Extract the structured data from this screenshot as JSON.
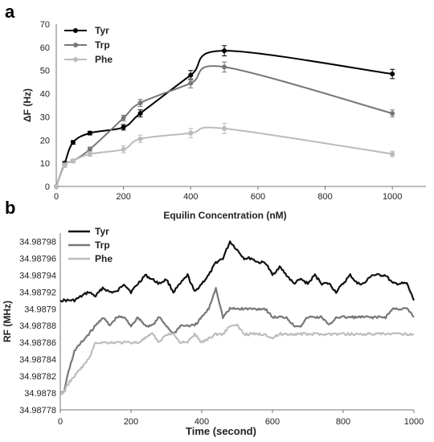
{
  "panels": {
    "a": "a",
    "b": "b"
  },
  "chart_data": [
    {
      "type": "line",
      "panel": "a",
      "xlabel": "Equilin Concentration (nM)",
      "ylabel": "ΔF (Hz)",
      "xlim": [
        0,
        1100
      ],
      "ylim": [
        0,
        70
      ],
      "xticks": [
        0,
        200,
        400,
        600,
        800,
        1000
      ],
      "yticks": [
        0,
        10,
        20,
        30,
        40,
        50,
        60,
        70
      ],
      "grid": false,
      "legend_position": "top-left",
      "x": [
        0,
        25,
        50,
        100,
        200,
        250,
        400,
        500,
        1000
      ],
      "series": [
        {
          "name": "Tyr",
          "color": "#000000",
          "values": [
            0,
            10,
            19,
            23,
            25.5,
            31.5,
            48,
            58.5,
            48.5
          ],
          "errors": [
            0,
            0.8,
            0.8,
            0.8,
            1.2,
            1.5,
            2.0,
            2.2,
            2.0
          ]
        },
        {
          "name": "Trp",
          "color": "#777777",
          "values": [
            0,
            9.5,
            11,
            16,
            29.5,
            36,
            44.5,
            51.5,
            31.5
          ],
          "errors": [
            0,
            0.8,
            0.8,
            1.0,
            1.2,
            1.5,
            2.0,
            2.2,
            1.5
          ]
        },
        {
          "name": "Phe",
          "color": "#bbbbbb",
          "values": [
            0,
            9,
            11,
            14,
            16,
            20.5,
            23,
            25,
            14
          ],
          "errors": [
            0,
            0.8,
            0.8,
            1.0,
            1.5,
            1.6,
            2.0,
            2.2,
            1.2
          ]
        }
      ]
    },
    {
      "type": "line",
      "panel": "b",
      "xlabel": "Time (second)",
      "ylabel": "RF (MHz)",
      "xlim": [
        0,
        1000
      ],
      "ylim": [
        34.98778,
        34.98799
      ],
      "xticks": [
        0,
        200,
        400,
        600,
        800,
        1000
      ],
      "xtick_labels": [
        "0",
        "200",
        "400",
        "600",
        "800",
        "1000"
      ],
      "yticks": [
        34.98778,
        34.9878,
        34.98782,
        34.98784,
        34.98786,
        34.98788,
        34.9879,
        34.98792,
        34.98794,
        34.98796,
        34.98798
      ],
      "ytick_labels": [
        "34.98778",
        "34.9878",
        "34.98782",
        "34.98784",
        "34.98786",
        "34.98788",
        "34.9879",
        "34.98792",
        "34.98794",
        "34.98796",
        "34.98798"
      ],
      "grid": false,
      "legend_position": "top-left",
      "series": [
        {
          "name": "Tyr",
          "color": "#111111",
          "x": [
            0,
            20,
            40,
            60,
            80,
            100,
            120,
            140,
            160,
            180,
            200,
            220,
            240,
            260,
            280,
            300,
            320,
            340,
            360,
            380,
            400,
            420,
            440,
            460,
            480,
            500,
            520,
            540,
            560,
            580,
            600,
            620,
            640,
            660,
            680,
            700,
            720,
            740,
            760,
            780,
            800,
            820,
            840,
            860,
            880,
            900,
            920,
            940,
            960,
            980,
            1000
          ],
          "values": [
            34.98791,
            34.98791,
            34.98791,
            34.987915,
            34.98792,
            34.987915,
            34.987925,
            34.98792,
            34.98792,
            34.98793,
            34.98792,
            34.98793,
            34.98794,
            34.987935,
            34.98793,
            34.987935,
            34.98792,
            34.98793,
            34.98794,
            34.98792,
            34.98793,
            34.98794,
            34.987955,
            34.98796,
            34.98798,
            34.98797,
            34.98796,
            34.98796,
            34.987955,
            34.987955,
            34.98794,
            34.98795,
            34.98794,
            34.98793,
            34.987935,
            34.98793,
            34.98794,
            34.98793,
            34.98793,
            34.98792,
            34.98793,
            34.98794,
            34.98793,
            34.98793,
            34.98794,
            34.98794,
            34.98794,
            34.98793,
            34.98793,
            34.98793,
            34.98791
          ]
        },
        {
          "name": "Trp",
          "color": "#777777",
          "x": [
            0,
            10,
            20,
            40,
            60,
            80,
            100,
            120,
            140,
            160,
            180,
            200,
            220,
            240,
            260,
            280,
            300,
            320,
            340,
            360,
            380,
            400,
            420,
            440,
            460,
            480,
            500,
            520,
            540,
            560,
            580,
            600,
            620,
            640,
            660,
            680,
            700,
            720,
            740,
            760,
            780,
            800,
            820,
            840,
            860,
            880,
            900,
            920,
            940,
            960,
            980,
            1000
          ],
          "values": [
            34.9878,
            34.9878,
            34.98782,
            34.98785,
            34.98786,
            34.98787,
            34.98788,
            34.98789,
            34.98788,
            34.98789,
            34.98789,
            34.98788,
            34.98789,
            34.98788,
            34.98788,
            34.98789,
            34.98788,
            34.98787,
            34.98788,
            34.98788,
            34.98788,
            34.98789,
            34.9879,
            34.987925,
            34.98789,
            34.9879,
            34.9879,
            34.9879,
            34.9879,
            34.9879,
            34.9879,
            34.98789,
            34.98789,
            34.98789,
            34.98788,
            34.98788,
            34.98789,
            34.98789,
            34.98789,
            34.98788,
            34.98789,
            34.98789,
            34.98789,
            34.98789,
            34.98789,
            34.98789,
            34.98789,
            34.98789,
            34.9879,
            34.9879,
            34.9879,
            34.98789
          ]
        },
        {
          "name": "Phe",
          "color": "#bdbdbd",
          "x": [
            0,
            10,
            20,
            40,
            60,
            80,
            100,
            120,
            140,
            160,
            180,
            200,
            220,
            240,
            260,
            280,
            300,
            320,
            340,
            360,
            380,
            400,
            420,
            440,
            460,
            480,
            500,
            520,
            540,
            560,
            580,
            600,
            620,
            640,
            660,
            680,
            700,
            720,
            740,
            760,
            780,
            800,
            820,
            840,
            860,
            880,
            900,
            920,
            940,
            960,
            980,
            1000
          ],
          "values": [
            34.9878,
            34.9878,
            34.98781,
            34.98782,
            34.98783,
            34.98784,
            34.98786,
            34.98786,
            34.98786,
            34.98786,
            34.98786,
            34.98786,
            34.98786,
            34.987865,
            34.98787,
            34.98786,
            34.98787,
            34.98787,
            34.98786,
            34.98786,
            34.98787,
            34.98786,
            34.987865,
            34.98787,
            34.98787,
            34.98788,
            34.98788,
            34.98787,
            34.98787,
            34.98787,
            34.98787,
            34.987865,
            34.98787,
            34.98787,
            34.98787,
            34.98787,
            34.98787,
            34.98787,
            34.98787,
            34.98787,
            34.98787,
            34.98787,
            34.98787,
            34.98787,
            34.98787,
            34.98787,
            34.98787,
            34.98787,
            34.98787,
            34.98787,
            34.98787,
            34.98787
          ]
        }
      ]
    }
  ]
}
